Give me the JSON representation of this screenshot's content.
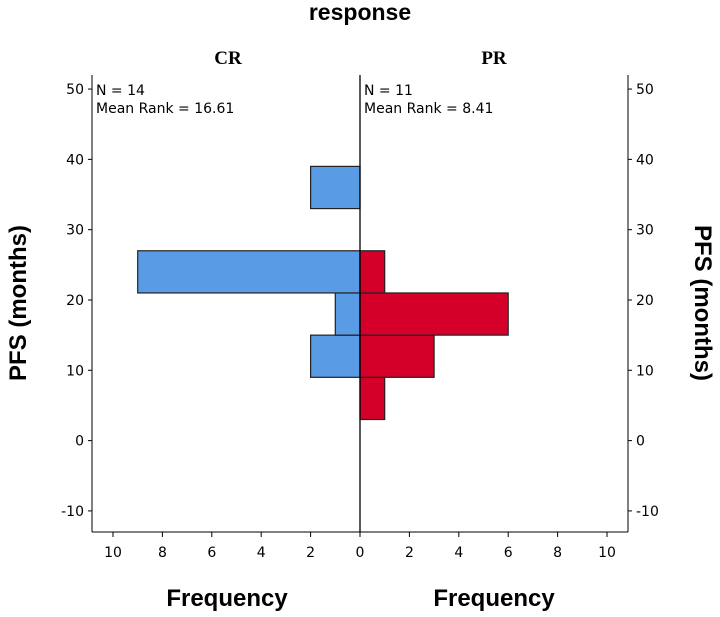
{
  "chart_data": {
    "type": "bar",
    "title": "response",
    "y_axis": {
      "label": "PFS (months)",
      "ylim": [
        -13,
        52
      ],
      "ticks": [
        -10,
        0,
        10,
        20,
        30,
        40,
        50
      ],
      "tick_labels": [
        "-10",
        "0",
        "10",
        "20",
        "30",
        "40",
        "50"
      ]
    },
    "x_axis": {
      "label": "Frequency",
      "xlim": [
        0,
        10.8
      ],
      "ticks": [
        0,
        2,
        4,
        6,
        8,
        10
      ],
      "tick_labels": [
        "0",
        "2",
        "4",
        "6",
        "8",
        "10"
      ]
    },
    "panels": [
      {
        "group": "CR",
        "color": "#5a9be6",
        "stats": [
          "N = 14",
          "Mean Rank = 16.61"
        ],
        "bins": [
          {
            "y0": 9,
            "y1": 15,
            "count": 2
          },
          {
            "y0": 15,
            "y1": 21,
            "count": 1
          },
          {
            "y0": 21,
            "y1": 27,
            "count": 9
          },
          {
            "y0": 33,
            "y1": 39,
            "count": 2
          }
        ]
      },
      {
        "group": "PR",
        "color": "#d4002a",
        "stats": [
          "N = 11",
          "Mean Rank = 8.41"
        ],
        "bins": [
          {
            "y0": 3,
            "y1": 9,
            "count": 1
          },
          {
            "y0": 9,
            "y1": 15,
            "count": 3
          },
          {
            "y0": 15,
            "y1": 21,
            "count": 6
          },
          {
            "y0": 21,
            "y1": 27,
            "count": 1
          }
        ]
      }
    ]
  }
}
